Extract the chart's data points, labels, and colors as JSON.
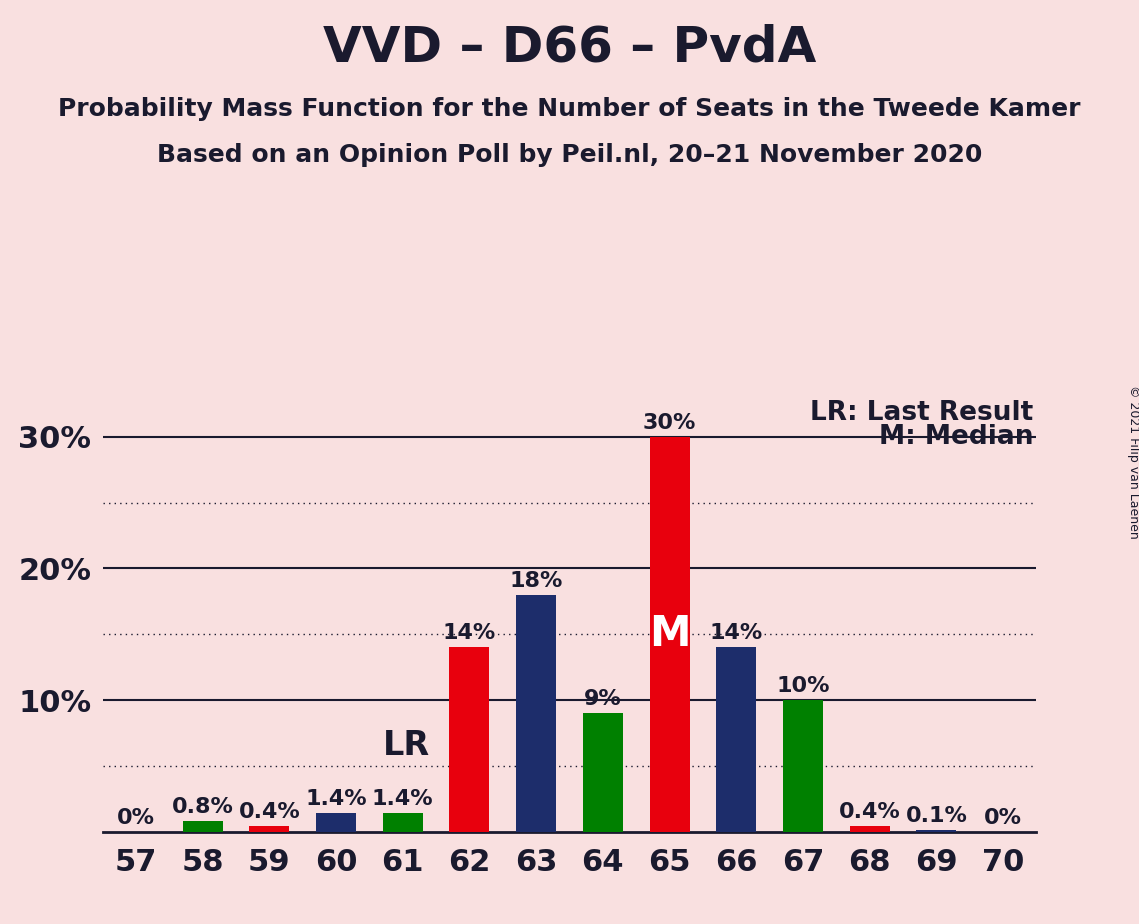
{
  "title": "VVD – D66 – PvdA",
  "subtitle1": "Probability Mass Function for the Number of Seats in the Tweede Kamer",
  "subtitle2": "Based on an Opinion Poll by Peil.nl, 20–21 November 2020",
  "copyright": "© 2021 Filip van Laenen",
  "legend_lr": "LR: Last Result",
  "legend_m": "M: Median",
  "seats": [
    57,
    58,
    59,
    60,
    61,
    62,
    63,
    64,
    65,
    66,
    67,
    68,
    69,
    70
  ],
  "red_values": [
    0.0,
    0.0,
    0.4,
    0.0,
    0.0,
    14.0,
    0.0,
    0.0,
    30.0,
    0.0,
    0.0,
    0.4,
    0.0,
    0.0
  ],
  "navy_values": [
    0.0,
    0.0,
    0.0,
    1.4,
    0.0,
    0.0,
    18.0,
    0.0,
    0.0,
    14.0,
    0.0,
    0.0,
    0.1,
    0.0
  ],
  "green_values": [
    0.0,
    0.8,
    0.0,
    0.0,
    1.4,
    0.0,
    0.0,
    9.0,
    0.0,
    0.0,
    10.0,
    0.0,
    0.0,
    0.0
  ],
  "labels": [
    "0%",
    "0.8%",
    "0.4%",
    "1.4%",
    "1.4%",
    "14%",
    "18%",
    "9%",
    "30%",
    "14%",
    "10%",
    "0.4%",
    "0.1%",
    "0%"
  ],
  "lr_seat": 61,
  "median_seat": 65,
  "red_color": "#E8000D",
  "navy_color": "#1D2D6B",
  "green_color": "#008000",
  "bg_color": "#F9E0E0",
  "bar_width": 0.6,
  "ylim_max": 33,
  "solid_lines": [
    10,
    20,
    30
  ],
  "dotted_lines": [
    5,
    15,
    25
  ],
  "title_fontsize": 36,
  "subtitle_fontsize": 18,
  "axis_tick_fontsize": 22,
  "bar_label_fontsize": 16,
  "legend_fontsize": 19,
  "lr_fontsize": 24,
  "m_fontsize": 30
}
